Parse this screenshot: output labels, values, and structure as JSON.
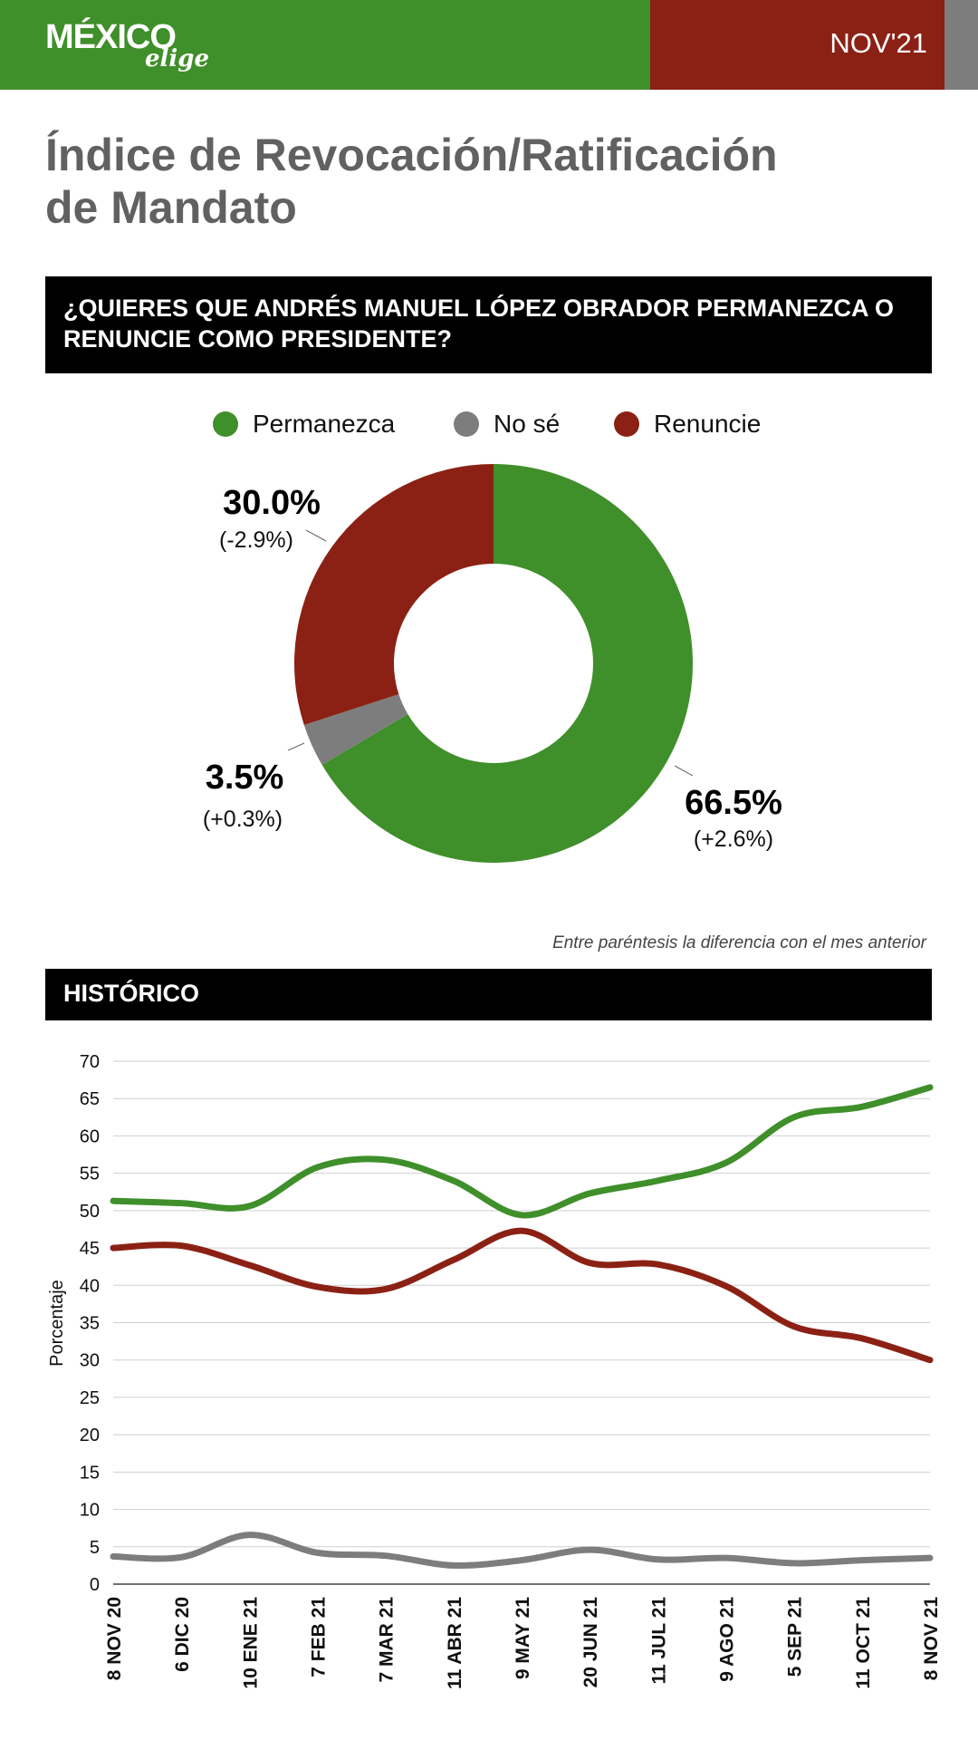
{
  "header": {
    "logo_main": "MÉXICO",
    "logo_sub": "elige",
    "date": "NOV'21"
  },
  "title": {
    "line1": "Índice de Revocación/Ratificación",
    "line2": "de Mandato"
  },
  "question": {
    "line1": "¿QUIERES QUE ANDRÉS MANUEL LÓPEZ OBRADOR PERMANEZCA O",
    "line2": "RENUNCIE COMO PRESIDENTE?"
  },
  "note": "Entre paréntesis la diferencia con el mes anterior",
  "historico_label": "HISTÓRICO",
  "colors": {
    "permanezca": "#3f8f2a",
    "nose": "#7d7d7d",
    "renuncie": "#8b2114"
  },
  "chart_data": [
    {
      "type": "pie",
      "variant": "donut",
      "legend": [
        "Permanezca",
        "No sé",
        "Renuncie"
      ],
      "slices": [
        {
          "label": "Permanezca",
          "value": 66.5,
          "value_label": "66.5%",
          "change": "(+2.6%)",
          "color": "#3f8f2a"
        },
        {
          "label": "No sé",
          "value": 3.5,
          "value_label": "3.5%",
          "change": "(+0.3%)",
          "color": "#7d7d7d"
        },
        {
          "label": "Renuncie",
          "value": 30.0,
          "value_label": "30.0%",
          "change": "(-2.9%)",
          "color": "#8b2114"
        }
      ]
    },
    {
      "type": "line",
      "title": "HISTÓRICO",
      "ylabel": "Porcentaje",
      "xlabel": "",
      "ylim": [
        0,
        70
      ],
      "yticks": [
        0,
        5,
        10,
        15,
        20,
        25,
        30,
        35,
        40,
        45,
        50,
        55,
        60,
        65,
        70
      ],
      "categories": [
        "8 NOV 20",
        "6 DIC 20",
        "10 ENE 21",
        "7 FEB 21",
        "7 MAR 21",
        "11 ABR 21",
        "9 MAY 21",
        "20 JUN 21",
        "11 JUL 21",
        "9 AGO 21",
        "5 SEP 21",
        "11 OCT 21",
        "8 NOV 21"
      ],
      "series": [
        {
          "name": "Permanezca",
          "color": "#3f8f2a",
          "values": [
            51.3,
            51.0,
            50.6,
            55.8,
            56.8,
            54.0,
            49.4,
            52.3,
            54.0,
            56.4,
            62.5,
            63.9,
            66.5
          ]
        },
        {
          "name": "Renuncie",
          "color": "#8b2114",
          "values": [
            45.0,
            45.3,
            42.7,
            39.8,
            39.5,
            43.4,
            47.3,
            43.0,
            42.8,
            39.9,
            34.5,
            32.9,
            30.0
          ]
        },
        {
          "name": "No sé",
          "color": "#7d7d7d",
          "values": [
            3.7,
            3.6,
            6.6,
            4.2,
            3.8,
            2.5,
            3.2,
            4.6,
            3.3,
            3.5,
            2.8,
            3.2,
            3.5
          ]
        }
      ]
    }
  ]
}
